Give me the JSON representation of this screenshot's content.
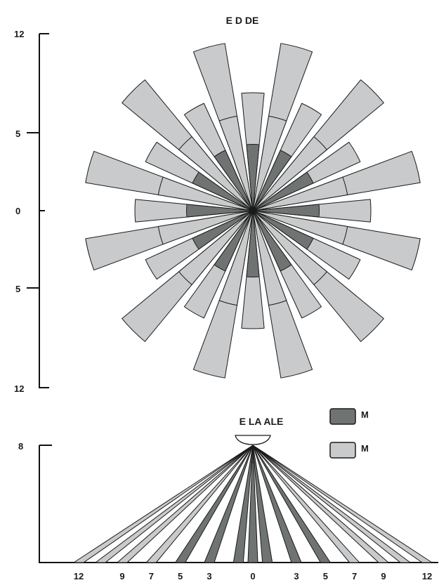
{
  "top_view": {
    "title": "E D   DE",
    "y_ticks": [
      "12",
      "5",
      "0",
      "5",
      "12"
    ]
  },
  "side_view": {
    "title": "E LA      ALE",
    "height_tick": "8",
    "x_ticks": [
      "12",
      "9",
      "7",
      "5",
      "3",
      "0",
      "3",
      "5",
      "7",
      "9",
      "12"
    ]
  },
  "legend": {
    "items": [
      {
        "label": "M",
        "color": "#6f7472"
      },
      {
        "label": "M",
        "color": "#c9cacc"
      }
    ]
  },
  "colors": {
    "dark": "#6f7472",
    "light": "#c9cacc",
    "outline": "#1a1a1a"
  },
  "chart_data": {
    "type": "radial-detection-pattern",
    "top_pattern": {
      "rings": [
        {
          "shade": "light",
          "range": 11.5,
          "count": 12,
          "offset_deg": -15
        },
        {
          "shade": "light",
          "range": 8.0,
          "count": 12,
          "offset_deg": 0
        },
        {
          "shade": "light",
          "range": 6.5,
          "count": 12,
          "offset_deg": 15
        },
        {
          "shade": "dark",
          "range": 4.5,
          "count": 12,
          "offset_deg": 0
        }
      ]
    },
    "side_pattern": {
      "mount_height": 8,
      "zones": [
        {
          "shade": "light",
          "x": -12
        },
        {
          "shade": "light",
          "x": -10.5
        },
        {
          "shade": "light",
          "x": -9
        },
        {
          "shade": "light",
          "x": -7
        },
        {
          "shade": "dark",
          "x": -5
        },
        {
          "shade": "dark",
          "x": -3
        },
        {
          "shade": "dark",
          "x": -1
        },
        {
          "shade": "dark",
          "x": 0
        },
        {
          "shade": "dark",
          "x": 1
        },
        {
          "shade": "dark",
          "x": 3
        },
        {
          "shade": "dark",
          "x": 5
        },
        {
          "shade": "light",
          "x": 7
        },
        {
          "shade": "light",
          "x": 9
        },
        {
          "shade": "light",
          "x": 10.5
        },
        {
          "shade": "light",
          "x": 12
        }
      ]
    }
  }
}
